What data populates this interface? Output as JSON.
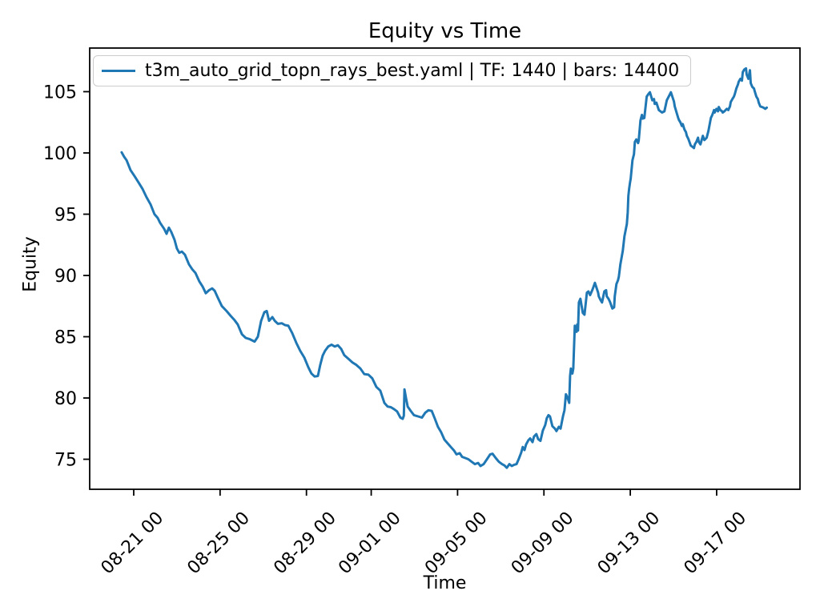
{
  "window": {
    "background": "#ffffff"
  },
  "colors": {
    "line": "#1f77b4",
    "axes": "#000000",
    "text": "#000000",
    "legend_border": "#cccccc",
    "legend_background": "rgba(255,255,255,0.8)"
  },
  "chart_data": {
    "type": "line",
    "title": "Equity vs Time",
    "xlabel": "Time",
    "ylabel": "Equity",
    "grid": false,
    "x_unit": "days since 08-20 00:00 (labels are MM-DD HH)",
    "xlim_days": [
      -1.04,
      31.86
    ],
    "ylim": [
      72.55,
      108.56
    ],
    "yticks": [
      75,
      80,
      85,
      90,
      95,
      100,
      105
    ],
    "xticks": [
      {
        "day": 1,
        "label": "08-21 00"
      },
      {
        "day": 5,
        "label": "08-25 00"
      },
      {
        "day": 9,
        "label": "08-29 00"
      },
      {
        "day": 12,
        "label": "09-01 00"
      },
      {
        "day": 16,
        "label": "09-05 00"
      },
      {
        "day": 20,
        "label": "09-09 00"
      },
      {
        "day": 24,
        "label": "09-13 00"
      },
      {
        "day": 28,
        "label": "09-17 00"
      }
    ],
    "legend": {
      "position": "upper left",
      "entries": [
        {
          "label": "t3m_auto_grid_topn_rays_best.yaml | TF: 1440 | bars: 14400",
          "color": "#1f77b4"
        }
      ]
    },
    "series": [
      {
        "name": "t3m_auto_grid_topn_rays_best.yaml | TF: 1440 | bars: 14400",
        "color": "#1f77b4",
        "points": [
          [
            0.44,
            100.05
          ],
          [
            0.55,
            99.7
          ],
          [
            0.67,
            99.4
          ],
          [
            0.85,
            98.6
          ],
          [
            1.04,
            98.1
          ],
          [
            1.22,
            97.6
          ],
          [
            1.41,
            97.05
          ],
          [
            1.59,
            96.4
          ],
          [
            1.78,
            95.8
          ],
          [
            1.96,
            95.0
          ],
          [
            2.11,
            94.7
          ],
          [
            2.22,
            94.3
          ],
          [
            2.41,
            93.8
          ],
          [
            2.52,
            93.4
          ],
          [
            2.63,
            93.9
          ],
          [
            2.74,
            93.55
          ],
          [
            2.89,
            92.9
          ],
          [
            3.0,
            92.2
          ],
          [
            3.11,
            91.85
          ],
          [
            3.23,
            91.95
          ],
          [
            3.37,
            91.7
          ],
          [
            3.56,
            90.9
          ],
          [
            3.71,
            90.5
          ],
          [
            3.86,
            90.2
          ],
          [
            4.04,
            89.5
          ],
          [
            4.19,
            89.1
          ],
          [
            4.34,
            88.55
          ],
          [
            4.49,
            88.8
          ],
          [
            4.63,
            88.95
          ],
          [
            4.75,
            88.75
          ],
          [
            4.89,
            88.2
          ],
          [
            5.08,
            87.5
          ],
          [
            5.3,
            87.1
          ],
          [
            5.49,
            86.7
          ],
          [
            5.67,
            86.35
          ],
          [
            5.82,
            86.0
          ],
          [
            6.01,
            85.2
          ],
          [
            6.19,
            84.9
          ],
          [
            6.38,
            84.8
          ],
          [
            6.6,
            84.6
          ],
          [
            6.75,
            85.0
          ],
          [
            6.9,
            86.3
          ],
          [
            7.05,
            87.0
          ],
          [
            7.16,
            87.1
          ],
          [
            7.27,
            86.3
          ],
          [
            7.42,
            86.6
          ],
          [
            7.53,
            86.3
          ],
          [
            7.68,
            86.05
          ],
          [
            7.86,
            86.1
          ],
          [
            8.01,
            85.95
          ],
          [
            8.16,
            85.9
          ],
          [
            8.34,
            85.3
          ],
          [
            8.53,
            84.5
          ],
          [
            8.71,
            83.85
          ],
          [
            8.9,
            83.3
          ],
          [
            9.09,
            82.5
          ],
          [
            9.23,
            82.0
          ],
          [
            9.38,
            81.75
          ],
          [
            9.53,
            81.8
          ],
          [
            9.64,
            82.7
          ],
          [
            9.75,
            83.45
          ],
          [
            9.86,
            83.85
          ],
          [
            10.01,
            84.2
          ],
          [
            10.16,
            84.35
          ],
          [
            10.31,
            84.2
          ],
          [
            10.46,
            84.3
          ],
          [
            10.61,
            84.0
          ],
          [
            10.75,
            83.5
          ],
          [
            10.94,
            83.2
          ],
          [
            11.13,
            82.9
          ],
          [
            11.31,
            82.7
          ],
          [
            11.5,
            82.4
          ],
          [
            11.68,
            81.95
          ],
          [
            11.87,
            81.9
          ],
          [
            12.05,
            81.6
          ],
          [
            12.24,
            80.9
          ],
          [
            12.42,
            80.6
          ],
          [
            12.61,
            79.6
          ],
          [
            12.76,
            79.3
          ],
          [
            12.91,
            79.25
          ],
          [
            13.05,
            79.1
          ],
          [
            13.2,
            78.9
          ],
          [
            13.35,
            78.4
          ],
          [
            13.46,
            78.3
          ],
          [
            13.51,
            78.55
          ],
          [
            13.54,
            80.7
          ],
          [
            13.61,
            80.0
          ],
          [
            13.69,
            79.3
          ],
          [
            13.83,
            78.95
          ],
          [
            13.98,
            78.6
          ],
          [
            14.17,
            78.5
          ],
          [
            14.35,
            78.4
          ],
          [
            14.5,
            78.8
          ],
          [
            14.65,
            79.0
          ],
          [
            14.8,
            78.95
          ],
          [
            14.95,
            78.3
          ],
          [
            15.09,
            77.65
          ],
          [
            15.24,
            77.2
          ],
          [
            15.39,
            76.6
          ],
          [
            15.54,
            76.3
          ],
          [
            15.69,
            76.0
          ],
          [
            15.84,
            75.7
          ],
          [
            15.95,
            75.4
          ],
          [
            16.1,
            75.5
          ],
          [
            16.21,
            75.2
          ],
          [
            16.36,
            75.1
          ],
          [
            16.5,
            75.0
          ],
          [
            16.65,
            74.8
          ],
          [
            16.8,
            74.6
          ],
          [
            16.95,
            74.7
          ],
          [
            17.06,
            74.45
          ],
          [
            17.21,
            74.6
          ],
          [
            17.36,
            75.0
          ],
          [
            17.51,
            75.4
          ],
          [
            17.62,
            75.45
          ],
          [
            17.77,
            75.1
          ],
          [
            17.91,
            74.8
          ],
          [
            18.06,
            74.6
          ],
          [
            18.17,
            74.5
          ],
          [
            18.28,
            74.3
          ],
          [
            18.4,
            74.6
          ],
          [
            18.51,
            74.45
          ],
          [
            18.62,
            74.55
          ],
          [
            18.73,
            74.6
          ],
          [
            18.84,
            75.05
          ],
          [
            18.95,
            75.55
          ],
          [
            19.02,
            76.0
          ],
          [
            19.1,
            75.75
          ],
          [
            19.17,
            76.2
          ],
          [
            19.28,
            76.55
          ],
          [
            19.36,
            76.7
          ],
          [
            19.47,
            76.4
          ],
          [
            19.54,
            76.85
          ],
          [
            19.65,
            77.05
          ],
          [
            19.73,
            76.65
          ],
          [
            19.84,
            76.5
          ],
          [
            19.95,
            77.35
          ],
          [
            20.06,
            77.8
          ],
          [
            20.13,
            78.35
          ],
          [
            20.21,
            78.6
          ],
          [
            20.28,
            78.5
          ],
          [
            20.39,
            77.7
          ],
          [
            20.51,
            77.5
          ],
          [
            20.58,
            77.3
          ],
          [
            20.69,
            77.65
          ],
          [
            20.77,
            77.5
          ],
          [
            20.88,
            78.5
          ],
          [
            20.95,
            79.0
          ],
          [
            21.02,
            80.3
          ],
          [
            21.1,
            80.0
          ],
          [
            21.17,
            79.6
          ],
          [
            21.21,
            81.8
          ],
          [
            21.25,
            82.4
          ],
          [
            21.32,
            82.0
          ],
          [
            21.36,
            82.4
          ],
          [
            21.43,
            85.9
          ],
          [
            21.47,
            85.7
          ],
          [
            21.51,
            85.4
          ],
          [
            21.54,
            86.0
          ],
          [
            21.58,
            85.5
          ],
          [
            21.62,
            87.8
          ],
          [
            21.69,
            88.1
          ],
          [
            21.8,
            86.95
          ],
          [
            21.88,
            86.8
          ],
          [
            21.99,
            88.6
          ],
          [
            22.06,
            88.7
          ],
          [
            22.14,
            88.4
          ],
          [
            22.25,
            88.85
          ],
          [
            22.36,
            89.4
          ],
          [
            22.51,
            88.6
          ],
          [
            22.54,
            88.3
          ],
          [
            22.62,
            88.0
          ],
          [
            22.69,
            87.8
          ],
          [
            22.8,
            88.7
          ],
          [
            22.88,
            88.8
          ],
          [
            22.91,
            88.3
          ],
          [
            22.99,
            88.1
          ],
          [
            23.06,
            87.85
          ],
          [
            23.17,
            87.3
          ],
          [
            23.25,
            87.4
          ],
          [
            23.28,
            88.3
          ],
          [
            23.36,
            89.3
          ],
          [
            23.43,
            89.6
          ],
          [
            23.47,
            89.9
          ],
          [
            23.54,
            90.9
          ],
          [
            23.65,
            92.0
          ],
          [
            23.73,
            93.2
          ],
          [
            23.84,
            94.2
          ],
          [
            23.88,
            95.15
          ],
          [
            23.91,
            96.5
          ],
          [
            23.95,
            97.1
          ],
          [
            23.99,
            97.6
          ],
          [
            24.02,
            97.9
          ],
          [
            24.1,
            99.4
          ],
          [
            24.17,
            99.9
          ],
          [
            24.21,
            100.9
          ],
          [
            24.28,
            101.1
          ],
          [
            24.36,
            100.8
          ],
          [
            24.39,
            101.0
          ],
          [
            24.47,
            102.65
          ],
          [
            24.54,
            103.1
          ],
          [
            24.58,
            102.8
          ],
          [
            24.65,
            102.85
          ],
          [
            24.76,
            104.6
          ],
          [
            24.84,
            104.8
          ],
          [
            24.91,
            104.95
          ],
          [
            25.02,
            104.3
          ],
          [
            25.1,
            104.4
          ],
          [
            25.13,
            104.0
          ],
          [
            25.21,
            104.1
          ],
          [
            25.32,
            103.5
          ],
          [
            25.47,
            103.3
          ],
          [
            25.58,
            103.4
          ],
          [
            25.69,
            104.3
          ],
          [
            25.84,
            104.8
          ],
          [
            25.88,
            104.95
          ],
          [
            26.02,
            104.2
          ],
          [
            26.06,
            103.8
          ],
          [
            26.21,
            102.9
          ],
          [
            26.25,
            102.7
          ],
          [
            26.32,
            102.5
          ],
          [
            26.39,
            102.2
          ],
          [
            26.43,
            102.35
          ],
          [
            26.51,
            101.9
          ],
          [
            26.58,
            101.7
          ],
          [
            26.62,
            101.4
          ],
          [
            26.69,
            101.15
          ],
          [
            26.8,
            100.6
          ],
          [
            26.88,
            100.5
          ],
          [
            26.95,
            100.4
          ],
          [
            26.99,
            100.7
          ],
          [
            27.06,
            100.9
          ],
          [
            27.14,
            101.25
          ],
          [
            27.17,
            100.9
          ],
          [
            27.25,
            100.7
          ],
          [
            27.36,
            101.4
          ],
          [
            27.43,
            101.05
          ],
          [
            27.54,
            101.25
          ],
          [
            27.62,
            101.8
          ],
          [
            27.73,
            102.85
          ],
          [
            27.8,
            103.1
          ],
          [
            27.88,
            103.5
          ],
          [
            27.91,
            103.3
          ],
          [
            27.99,
            103.6
          ],
          [
            28.06,
            103.4
          ],
          [
            28.1,
            103.75
          ],
          [
            28.17,
            103.5
          ],
          [
            28.25,
            103.4
          ],
          [
            28.28,
            103.3
          ],
          [
            28.36,
            103.4
          ],
          [
            28.47,
            103.6
          ],
          [
            28.54,
            103.5
          ],
          [
            28.62,
            103.8
          ],
          [
            28.65,
            104.15
          ],
          [
            28.73,
            104.4
          ],
          [
            28.8,
            104.6
          ],
          [
            28.84,
            104.8
          ],
          [
            28.91,
            105.25
          ],
          [
            28.99,
            105.6
          ],
          [
            29.02,
            105.8
          ],
          [
            29.1,
            106.05
          ],
          [
            29.17,
            105.9
          ],
          [
            29.21,
            106.6
          ],
          [
            29.28,
            106.8
          ],
          [
            29.36,
            106.9
          ],
          [
            29.39,
            106.4
          ],
          [
            29.47,
            106.05
          ],
          [
            29.54,
            106.75
          ],
          [
            29.58,
            105.7
          ],
          [
            29.65,
            105.4
          ],
          [
            29.73,
            105.25
          ],
          [
            29.76,
            105.05
          ],
          [
            29.84,
            104.6
          ],
          [
            29.91,
            104.4
          ],
          [
            29.95,
            104.1
          ],
          [
            30.02,
            103.8
          ],
          [
            30.1,
            103.75
          ],
          [
            30.17,
            103.7
          ],
          [
            30.25,
            103.6
          ],
          [
            30.32,
            103.7
          ]
        ]
      }
    ]
  }
}
